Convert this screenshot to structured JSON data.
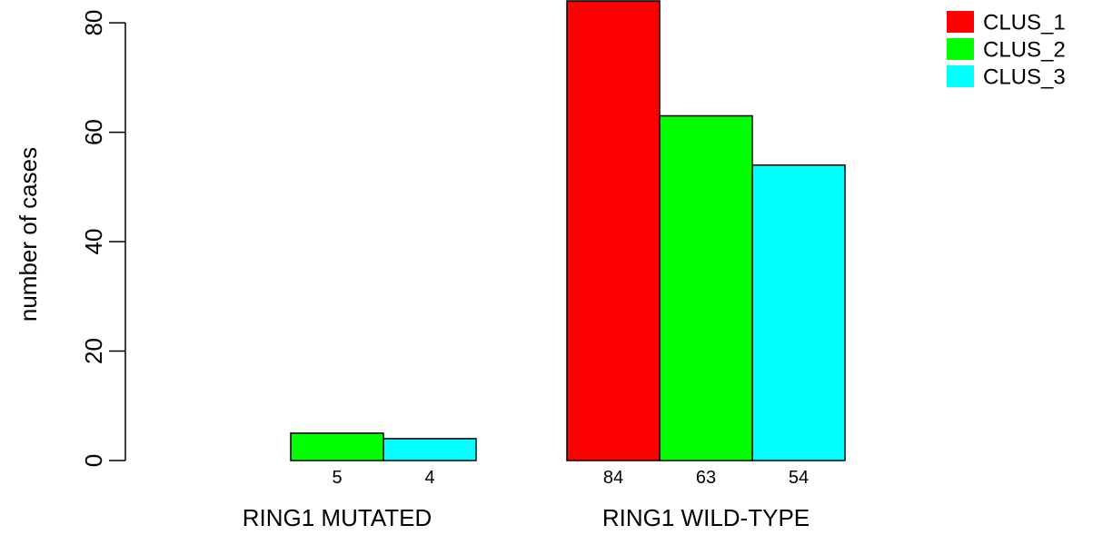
{
  "chart_data": {
    "type": "bar",
    "ylabel": "number of cases",
    "ylim": [
      0,
      84
    ],
    "yticks": [
      0,
      20,
      40,
      60,
      80
    ],
    "groups": [
      "RING1 MUTATED",
      "RING1 WILD-TYPE"
    ],
    "series": [
      {
        "name": "CLUS_1",
        "color": "#ff0000",
        "values": [
          0,
          84
        ]
      },
      {
        "name": "CLUS_2",
        "color": "#00ff00",
        "values": [
          5,
          63
        ]
      },
      {
        "name": "CLUS_3",
        "color": "#00ffff",
        "values": [
          4,
          54
        ]
      }
    ],
    "count_labels": [
      [
        "",
        "5",
        "4"
      ],
      [
        "84",
        "63",
        "54"
      ]
    ],
    "legend_position": "top-right",
    "grid": false
  }
}
